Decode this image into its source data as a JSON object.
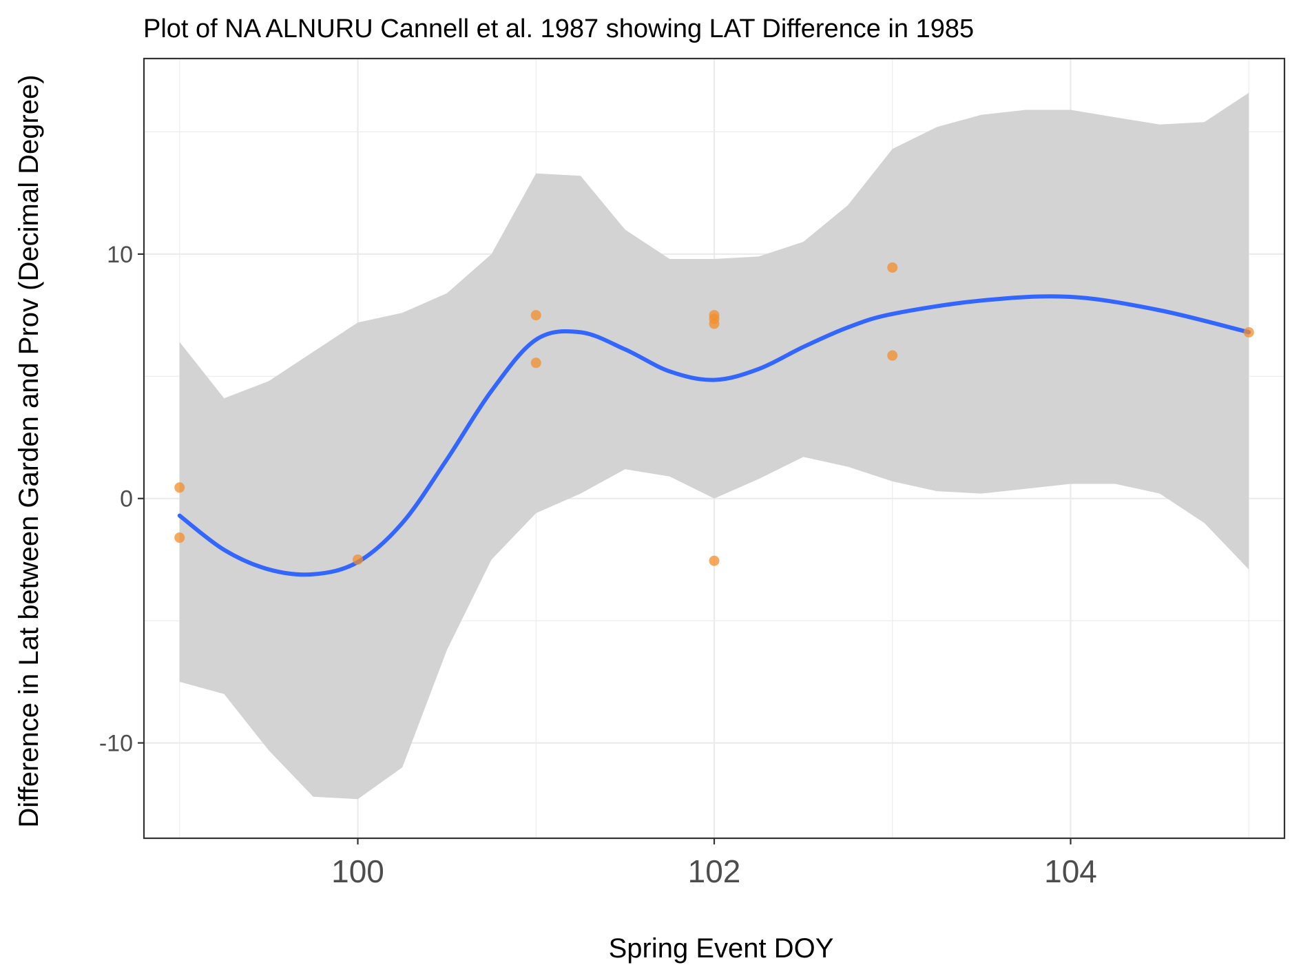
{
  "chart_data": {
    "type": "scatter",
    "title": "Plot of NA ALNURU Cannell et al. 1987 showing LAT Difference in 1985",
    "xlabel": "Spring Event DOY",
    "ylabel": "Difference in Lat between Garden and Prov (Decimal Degree)",
    "xlim": [
      98.8,
      105.2
    ],
    "ylim": [
      -13.9,
      18.0
    ],
    "x_ticks": [
      100,
      102,
      104
    ],
    "x_tick_labels": [
      "100",
      "102",
      "104"
    ],
    "y_ticks": [
      -10,
      0,
      10
    ],
    "y_tick_labels": [
      "-10",
      "0",
      "10"
    ],
    "grid": true,
    "points": [
      {
        "x": 99,
        "y": 0.45
      },
      {
        "x": 99,
        "y": -1.6
      },
      {
        "x": 100,
        "y": -2.5
      },
      {
        "x": 101,
        "y": 7.5
      },
      {
        "x": 101,
        "y": 5.55
      },
      {
        "x": 102,
        "y": 7.5
      },
      {
        "x": 102,
        "y": 7.35
      },
      {
        "x": 102,
        "y": 7.15
      },
      {
        "x": 102,
        "y": -2.55
      },
      {
        "x": 103,
        "y": 9.45
      },
      {
        "x": 103,
        "y": 5.85
      },
      {
        "x": 105,
        "y": 6.8
      }
    ],
    "smooth": {
      "x": [
        99.0,
        99.25,
        99.5,
        99.75,
        100.0,
        100.25,
        100.5,
        100.75,
        101.0,
        101.25,
        101.5,
        101.75,
        102.0,
        102.25,
        102.5,
        102.75,
        103.0,
        103.5,
        104.0,
        104.5,
        105.0
      ],
      "y": [
        -0.7,
        -2.1,
        -2.9,
        -3.1,
        -2.6,
        -1.0,
        1.6,
        4.4,
        6.5,
        6.8,
        6.1,
        5.2,
        4.85,
        5.3,
        6.2,
        7.0,
        7.55,
        8.1,
        8.25,
        7.7,
        6.8
      ]
    },
    "ribbon": {
      "x": [
        99.0,
        99.25,
        99.5,
        99.75,
        100.0,
        100.25,
        100.5,
        100.75,
        101.0,
        101.25,
        101.5,
        101.75,
        102.0,
        102.25,
        102.5,
        102.75,
        103.0,
        103.25,
        103.5,
        103.75,
        104.0,
        104.25,
        104.5,
        104.75,
        105.0
      ],
      "ymin": [
        -7.5,
        -8.0,
        -10.3,
        -12.2,
        -12.3,
        -11.0,
        -6.2,
        -2.5,
        -0.6,
        0.2,
        1.2,
        0.9,
        0.0,
        0.8,
        1.7,
        1.3,
        0.7,
        0.3,
        0.2,
        0.4,
        0.6,
        0.6,
        0.2,
        -1.0,
        -2.9
      ],
      "ymax": [
        6.4,
        4.1,
        4.8,
        6.0,
        7.2,
        7.6,
        8.4,
        10.0,
        13.3,
        13.2,
        11.0,
        9.8,
        9.8,
        9.9,
        10.5,
        12.0,
        14.3,
        15.2,
        15.7,
        15.9,
        15.9,
        15.6,
        15.3,
        15.4,
        16.6
      ]
    },
    "colors": {
      "points": "#f28e2b",
      "smooth_line": "#3366ff",
      "ribbon": "#d3d3d3",
      "grid": "#ebebeb",
      "panel_border": "#333333"
    }
  }
}
